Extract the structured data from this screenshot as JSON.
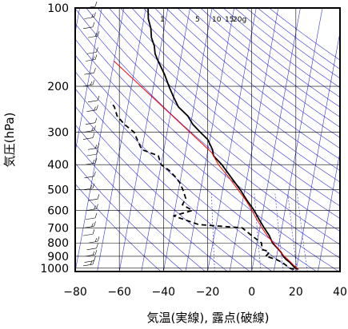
{
  "chart_data": {
    "type": "skew-t",
    "xlabel": "気温(実線), 露点(破線)",
    "ylabel": "気圧(hPa)",
    "xlim": [
      -80,
      40
    ],
    "ylim": [
      1030,
      100
    ],
    "y_scale": "log",
    "x_ticks": [
      -80,
      -60,
      -40,
      -20,
      0,
      20,
      40
    ],
    "x_tick_labels": [
      "−80",
      "−60",
      "−40",
      "−20",
      "0",
      "20",
      "40"
    ],
    "y_ticks": [
      100,
      200,
      300,
      400,
      500,
      600,
      700,
      800,
      900,
      1000
    ],
    "y_tick_labels": [
      "100",
      "200",
      "300",
      "400",
      "500",
      "600",
      "700",
      "800",
      "900",
      "1000"
    ],
    "mixing_ratio_labels": [
      "1",
      "5",
      "10",
      "15",
      "20g"
    ],
    "grid": true,
    "series": [
      {
        "kind": "temperature",
        "color": "#000000",
        "dash": "none",
        "points": [
          {
            "p": 1010,
            "t": 21
          },
          {
            "p": 1000,
            "t": 19.5
          },
          {
            "p": 975,
            "t": 18
          },
          {
            "p": 950,
            "t": 16.5
          },
          {
            "p": 925,
            "t": 14.5
          },
          {
            "p": 900,
            "t": 13
          },
          {
            "p": 875,
            "t": 12
          },
          {
            "p": 850,
            "t": 10.5
          },
          {
            "p": 800,
            "t": 7
          },
          {
            "p": 750,
            "t": 5
          },
          {
            "p": 700,
            "t": 2
          },
          {
            "p": 650,
            "t": -1
          },
          {
            "p": 600,
            "t": -4
          },
          {
            "p": 550,
            "t": -8
          },
          {
            "p": 500,
            "t": -12
          },
          {
            "p": 450,
            "t": -17
          },
          {
            "p": 400,
            "t": -22.5
          },
          {
            "p": 370,
            "t": -27
          },
          {
            "p": 350,
            "t": -28
          },
          {
            "p": 320,
            "t": -31
          },
          {
            "p": 300,
            "t": -35
          },
          {
            "p": 280,
            "t": -39
          },
          {
            "p": 260,
            "t": -42
          },
          {
            "p": 240,
            "t": -47
          },
          {
            "p": 220,
            "t": -50
          },
          {
            "p": 200,
            "t": -53
          },
          {
            "p": 180,
            "t": -56
          },
          {
            "p": 160,
            "t": -60
          },
          {
            "p": 150,
            "t": -62
          },
          {
            "p": 140,
            "t": -63
          },
          {
            "p": 130,
            "t": -65
          },
          {
            "p": 120,
            "t": -66
          },
          {
            "p": 110,
            "t": -68
          },
          {
            "p": 100,
            "t": -69
          }
        ]
      },
      {
        "kind": "dewpoint",
        "color": "#000000",
        "dash": "6,4",
        "points": [
          {
            "p": 1010,
            "t": 19
          },
          {
            "p": 1000,
            "t": 17
          },
          {
            "p": 975,
            "t": 15
          },
          {
            "p": 950,
            "t": 13
          },
          {
            "p": 925,
            "t": 10
          },
          {
            "p": 900,
            "t": 5
          },
          {
            "p": 880,
            "t": 6
          },
          {
            "p": 860,
            "t": 6
          },
          {
            "p": 850,
            "t": 3
          },
          {
            "p": 800,
            "t": 2
          },
          {
            "p": 750,
            "t": -3
          },
          {
            "p": 700,
            "t": -8
          },
          {
            "p": 680,
            "t": -28
          },
          {
            "p": 650,
            "t": -35
          },
          {
            "p": 630,
            "t": -40
          },
          {
            "p": 600,
            "t": -32
          },
          {
            "p": 570,
            "t": -37
          },
          {
            "p": 540,
            "t": -36
          },
          {
            "p": 500,
            "t": -38
          },
          {
            "p": 470,
            "t": -40
          },
          {
            "p": 450,
            "t": -42
          },
          {
            "p": 420,
            "t": -46
          },
          {
            "p": 400,
            "t": -50
          },
          {
            "p": 370,
            "t": -52
          },
          {
            "p": 350,
            "t": -60
          },
          {
            "p": 330,
            "t": -62
          },
          {
            "p": 300,
            "t": -65
          },
          {
            "p": 280,
            "t": -70
          },
          {
            "p": 260,
            "t": -74
          },
          {
            "p": 240,
            "t": -76
          },
          {
            "p": 230,
            "t": -78
          }
        ]
      },
      {
        "kind": "parcel",
        "color": "#ff0000",
        "dash": "none",
        "points": [
          {
            "p": 1010,
            "t": 21
          },
          {
            "p": 975,
            "t": 18.5
          },
          {
            "p": 950,
            "t": 17
          },
          {
            "p": 900,
            "t": 13.5
          },
          {
            "p": 850,
            "t": 10.5
          },
          {
            "p": 800,
            "t": 7.5
          },
          {
            "p": 750,
            "t": 4
          },
          {
            "p": 700,
            "t": 1
          },
          {
            "p": 650,
            "t": -2
          },
          {
            "p": 600,
            "t": -5
          },
          {
            "p": 550,
            "t": -8.5
          },
          {
            "p": 500,
            "t": -13
          },
          {
            "p": 450,
            "t": -18
          },
          {
            "p": 400,
            "t": -24
          },
          {
            "p": 360,
            "t": -28
          },
          {
            "p": 160,
            "t": -80
          }
        ]
      }
    ],
    "colors": {
      "grid": "#000000",
      "background_lines": "#3333dd",
      "temperature": "#000000",
      "dewpoint": "#000000",
      "parcel": "#ff0000"
    }
  }
}
